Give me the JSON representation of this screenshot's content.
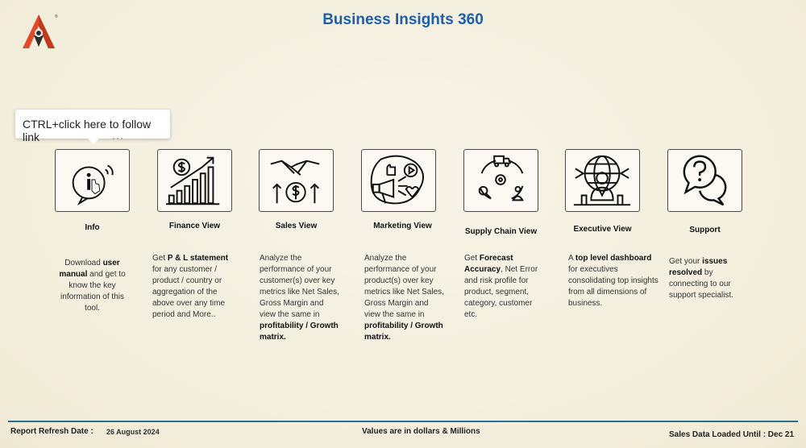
{
  "header": {
    "title": "Business Insights 360",
    "logo_mark": "®"
  },
  "tooltip": {
    "text": "CTRL+click here to follow link",
    "more_icon": "···"
  },
  "views": [
    {
      "key": "info",
      "icon": "info-phone-icon",
      "title": "Info",
      "desc_parts": [
        [
          "Download ",
          false
        ],
        [
          "user manual",
          true
        ],
        [
          " and get to know the key information of this tool.",
          false
        ]
      ]
    },
    {
      "key": "finance",
      "icon": "dollar-growth-chart-icon",
      "title": "Finance View",
      "desc_parts": [
        [
          "Get  ",
          false
        ],
        [
          "P & L statement",
          true
        ],
        [
          " for any customer / product / country or aggregation of the above over any time period and More..",
          false
        ]
      ]
    },
    {
      "key": "sales",
      "icon": "handshake-dollar-icon",
      "title": "Sales View",
      "desc_parts": [
        [
          "Analyze the performance of your customer(s) over key metrics like Net Sales, Gross Margin and view the same in ",
          false
        ],
        [
          "profitability / Growth matrix.",
          true
        ]
      ]
    },
    {
      "key": "marketing",
      "icon": "megaphone-social-icon",
      "title": "Marketing View",
      "desc_parts": [
        [
          "Analyze the performance of your product(s) over key metrics like Net Sales, Gross Margin and view the same in ",
          false
        ],
        [
          "profitability / Growth matrix.",
          true
        ]
      ]
    },
    {
      "key": "supply",
      "icon": "supply-chain-cycle-icon",
      "title": "Supply Chain View",
      "desc_parts": [
        [
          "Get ",
          false
        ],
        [
          "Forecast Accuracy",
          true
        ],
        [
          ", Net Error and risk profile for product, segment, category, customer etc.",
          false
        ]
      ]
    },
    {
      "key": "executive",
      "icon": "executive-globe-icon",
      "title": "Executive View",
      "desc_parts": [
        [
          "A ",
          false
        ],
        [
          "top level dashboard",
          true
        ],
        [
          " for executives consolidating top insights from all dimensions of business.",
          false
        ]
      ]
    },
    {
      "key": "support",
      "icon": "question-chat-icon",
      "title": "Support",
      "desc_parts": [
        [
          "Get your ",
          false
        ],
        [
          "issues resolved",
          true
        ],
        [
          " by connecting to our support specialist.",
          false
        ]
      ]
    }
  ],
  "footer": {
    "refresh_label": "Report Refresh Date :",
    "refresh_date": "26 August 2024",
    "values_note": "Values are in dollars & Millions",
    "loaded_until": "Sales Data Loaded Until : Dec 21"
  },
  "colors": {
    "title": "#1f5fa8",
    "logo_red": "#e0492a",
    "logo_dark": "#2b2b2b",
    "footer_line": "#2c6f8f",
    "background": "#f5f1e3"
  }
}
